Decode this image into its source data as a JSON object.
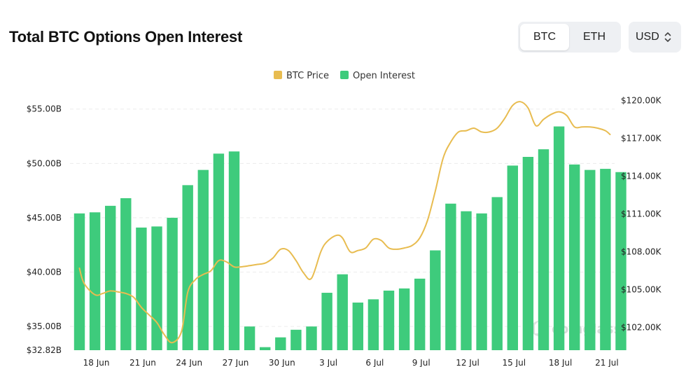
{
  "header": {
    "title": "Total BTC Options Open Interest",
    "asset_tabs": [
      {
        "label": "BTC",
        "active": true
      },
      {
        "label": "ETH",
        "active": false
      }
    ],
    "currency": {
      "label": "USD",
      "icon": "chevron-up-down-icon"
    }
  },
  "colors": {
    "open_interest": "#3ecb7c",
    "btc_price": "#e8bc50",
    "grid": "#ececec"
  },
  "watermark": {
    "text": "coinglass",
    "icon": "coinglass-logo-icon"
  },
  "chart_data": {
    "type": "bar",
    "title": "Total BTC Options Open Interest",
    "x_tick_labels": [
      "18 Jun",
      "21 Jun",
      "24 Jun",
      "27 Jun",
      "30 Jun",
      "3 Jul",
      "6 Jul",
      "9 Jul",
      "12 Jul",
      "15 Jul",
      "18 Jul",
      "21 Jul"
    ],
    "x_tick_indices": [
      1,
      4,
      7,
      10,
      13,
      16,
      19,
      22,
      25,
      28,
      31,
      34
    ],
    "categories": [
      "17 Jun",
      "18 Jun",
      "19 Jun",
      "20 Jun",
      "21 Jun",
      "22 Jun",
      "23 Jun",
      "24 Jun",
      "25 Jun",
      "26 Jun",
      "27 Jun",
      "28 Jun",
      "29 Jun",
      "30 Jun",
      "1 Jul",
      "2 Jul",
      "3 Jul",
      "4 Jul",
      "5 Jul",
      "6 Jul",
      "7 Jul",
      "8 Jul",
      "9 Jul",
      "10 Jul",
      "11 Jul",
      "12 Jul",
      "13 Jul",
      "14 Jul",
      "15 Jul",
      "16 Jul",
      "17 Jul",
      "18 Jul",
      "19 Jul",
      "20 Jul",
      "21 Jul",
      "22 Jul"
    ],
    "legend": [
      {
        "name": "BTC Price",
        "color": "#e8bc50"
      },
      {
        "name": "Open Interest",
        "color": "#3ecb7c"
      }
    ],
    "left_axis": {
      "ylim": [
        32.82,
        57.3
      ],
      "ticks": [
        32.82,
        35,
        40,
        45,
        50,
        55
      ],
      "tick_labels": [
        "$32.82B",
        "$35.00B",
        "$40.00B",
        "$45.00B",
        "$50.00B",
        "$55.00B"
      ]
    },
    "right_axis": {
      "ylim": [
        100200,
        121300
      ],
      "ticks": [
        102000,
        105000,
        108000,
        111000,
        114000,
        117000,
        120000
      ],
      "tick_labels": [
        "$102.00K",
        "$105.00K",
        "$108.00K",
        "$111.00K",
        "$114.00K",
        "$117.00K",
        "$120.00K"
      ]
    },
    "series": [
      {
        "name": "Open Interest",
        "type": "bar",
        "axis": "left",
        "values": [
          45.4,
          45.5,
          46.1,
          46.8,
          44.1,
          44.2,
          45.0,
          48.0,
          49.4,
          50.9,
          51.1,
          35.0,
          33.1,
          34.0,
          34.7,
          35.0,
          38.1,
          39.8,
          37.2,
          37.5,
          38.3,
          38.5,
          39.4,
          42.0,
          46.3,
          45.6,
          45.4,
          46.9,
          49.8,
          50.6,
          51.3,
          53.4,
          49.9,
          49.4,
          49.5,
          49.2
        ],
        "unit": "billion USD"
      },
      {
        "name": "BTC Price",
        "type": "line",
        "axis": "right",
        "x": [
          0,
          0.3,
          1,
          1.5,
          2,
          2.6,
          3,
          3.5,
          4,
          4.5,
          5,
          5.5,
          6,
          6.6,
          7,
          7.5,
          8,
          8.5,
          9,
          9.5,
          10,
          10.4,
          11,
          11.5,
          12,
          12.5,
          13,
          13.5,
          14,
          14.5,
          15,
          15.6,
          16,
          16.6,
          17,
          17.5,
          18,
          18.5,
          19,
          19.5,
          20,
          20.5,
          21,
          21.5,
          22,
          22.5,
          23,
          23.5,
          24,
          24.5,
          25,
          25.5,
          26,
          26.5,
          27,
          27.5,
          28,
          28.5,
          29,
          29.5,
          30,
          30.5,
          31,
          31.5,
          32,
          32.5,
          33,
          33.5,
          34,
          34.3
        ],
        "values": [
          106700,
          105500,
          104600,
          104700,
          104900,
          104800,
          104700,
          104400,
          103600,
          103000,
          102400,
          101400,
          100800,
          101700,
          104800,
          105800,
          106200,
          106500,
          107300,
          107200,
          106800,
          106800,
          106900,
          107000,
          107100,
          107500,
          108200,
          108100,
          107300,
          106300,
          105900,
          108000,
          108800,
          109300,
          109100,
          108000,
          108100,
          108300,
          109000,
          108900,
          108300,
          108200,
          108300,
          108500,
          109100,
          110500,
          112800,
          115400,
          116700,
          117500,
          117600,
          117800,
          117500,
          117500,
          117800,
          118600,
          119600,
          119900,
          119400,
          118000,
          118500,
          118900,
          119100,
          118800,
          117900,
          117900,
          117900,
          117800,
          117600,
          117300
        ],
        "unit": "USD"
      }
    ]
  }
}
